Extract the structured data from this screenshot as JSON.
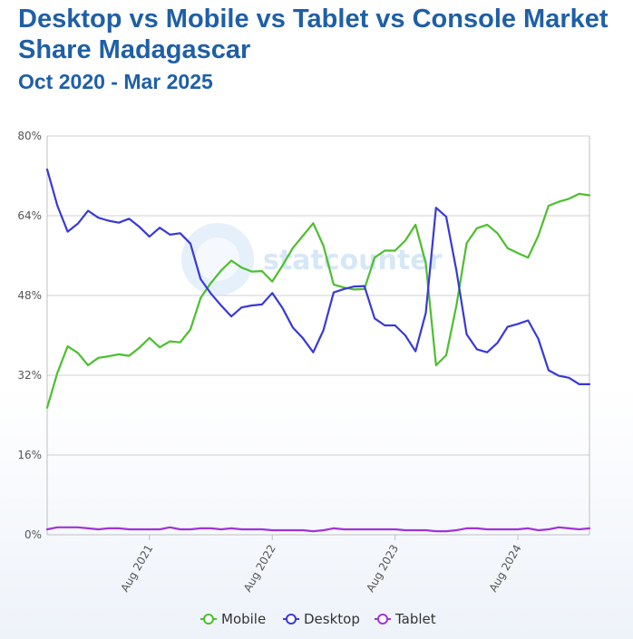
{
  "chart_data": {
    "type": "line",
    "title": "Desktop vs Mobile vs Tablet vs Console Market Share Madagascar",
    "subtitle": "Oct 2020 - Mar 2025",
    "watermark": "statcounter",
    "ylim": [
      0,
      80
    ],
    "y_ticks": [
      0,
      16,
      32,
      48,
      64,
      80
    ],
    "y_tick_labels": [
      "0%",
      "16%",
      "32%",
      "48%",
      "64%",
      "80%"
    ],
    "x_ticks": [
      {
        "index": 10,
        "label": "Aug 2021"
      },
      {
        "index": 22,
        "label": "Aug 2022"
      },
      {
        "index": 34,
        "label": "Aug 2023"
      },
      {
        "index": 46,
        "label": "Aug 2024"
      }
    ],
    "grid": true,
    "legend_position": "bottom",
    "series": [
      {
        "name": "Mobile",
        "color": "#4cbf2e",
        "values": [
          25.5,
          32.5,
          37.8,
          36.5,
          34.0,
          35.5,
          35.8,
          36.2,
          35.9,
          37.5,
          39.5,
          37.6,
          38.8,
          38.6,
          41.2,
          47.5,
          50.5,
          53.0,
          55.0,
          53.6,
          52.8,
          52.9,
          50.8,
          54.0,
          57.5,
          60.0,
          62.5,
          58.0,
          50.2,
          49.6,
          49.2,
          49.3,
          55.6,
          57.0,
          57.0,
          59.0,
          62.2,
          54.5,
          34.0,
          36.0,
          46.0,
          58.5,
          61.5,
          62.2,
          60.5,
          57.5,
          56.5,
          55.6,
          60.0,
          66.0,
          66.8,
          67.4,
          68.4,
          68.1
        ]
      },
      {
        "name": "Desktop",
        "color": "#3939d8",
        "values": [
          73.3,
          66.0,
          60.8,
          62.4,
          65.0,
          63.6,
          63.0,
          62.6,
          63.4,
          61.8,
          59.8,
          61.6,
          60.2,
          60.5,
          58.4,
          51.3,
          48.4,
          46.0,
          43.8,
          45.6,
          46.0,
          46.2,
          48.5,
          45.5,
          41.6,
          39.4,
          36.6,
          41.0,
          48.6,
          49.3,
          49.8,
          49.9,
          43.4,
          42.0,
          42.0,
          40.0,
          36.8,
          44.5,
          65.6,
          63.8,
          53.0,
          40.2,
          37.2,
          36.6,
          38.5,
          41.7,
          42.3,
          43.0,
          39.3,
          33.0,
          31.9,
          31.5,
          30.2,
          30.2
        ]
      },
      {
        "name": "Tablet",
        "color": "#a033d8",
        "values": [
          1.1,
          1.5,
          1.5,
          1.5,
          1.3,
          1.1,
          1.3,
          1.3,
          1.1,
          1.1,
          1.1,
          1.1,
          1.5,
          1.1,
          1.1,
          1.3,
          1.3,
          1.1,
          1.3,
          1.1,
          1.1,
          1.1,
          0.9,
          0.9,
          0.9,
          0.9,
          0.7,
          0.9,
          1.3,
          1.1,
          1.1,
          1.1,
          1.1,
          1.1,
          1.1,
          0.9,
          0.9,
          0.9,
          0.7,
          0.7,
          0.9,
          1.3,
          1.3,
          1.1,
          1.1,
          1.1,
          1.1,
          1.3,
          0.9,
          1.1,
          1.5,
          1.3,
          1.1,
          1.3
        ]
      }
    ]
  }
}
